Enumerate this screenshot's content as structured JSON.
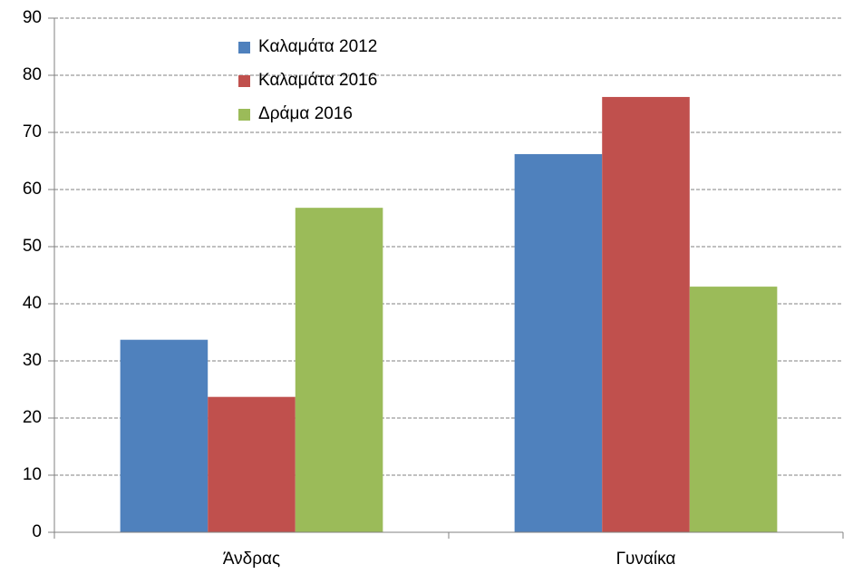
{
  "chart_data": {
    "type": "bar",
    "categories": [
      "Άνδρας",
      "Γυναίκα"
    ],
    "series": [
      {
        "name": "Καλαμάτα 2012",
        "color": "#4f81bd",
        "values": [
          33.7,
          66.2
        ]
      },
      {
        "name": "Καλαμάτα 2016",
        "color": "#c0504d",
        "values": [
          23.7,
          76.2
        ]
      },
      {
        "name": "Δράμα 2016",
        "color": "#9bbb59",
        "values": [
          56.8,
          43.0
        ]
      }
    ],
    "ylim": [
      0,
      90
    ],
    "yticks": [
      0,
      10,
      20,
      30,
      40,
      50,
      60,
      70,
      80,
      90
    ],
    "grid": true,
    "legend": "top-left"
  }
}
